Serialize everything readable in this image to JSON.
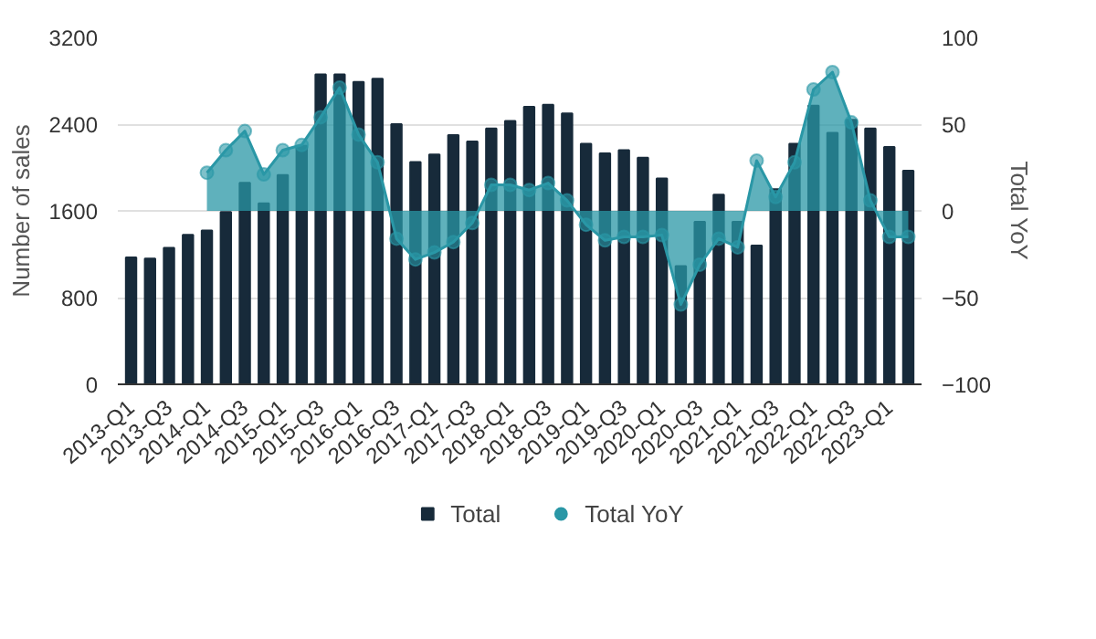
{
  "chart_data": {
    "type": "bar",
    "categories": [
      "2013-Q1",
      null,
      "2013-Q3",
      null,
      "2014-Q1",
      null,
      "2014-Q3",
      null,
      "2015-Q1",
      null,
      "2015-Q3",
      null,
      "2016-Q1",
      null,
      "2016-Q3",
      null,
      "2017-Q1",
      null,
      "2017-Q3",
      null,
      "2018-Q1",
      null,
      "2018-Q3",
      null,
      "2019-Q1",
      null,
      "2019-Q3",
      null,
      "2020-Q1",
      null,
      "2020-Q3",
      null,
      "2021-Q1",
      null,
      "2021-Q3",
      null,
      "2022-Q1",
      null,
      "2022-Q3",
      null,
      "2023-Q1",
      null
    ],
    "series": [
      {
        "name": "Total",
        "type": "bar",
        "color": "#172a3a",
        "values": [
          1170,
          1160,
          1260,
          1380,
          1420,
          1590,
          1860,
          1670,
          1930,
          2200,
          2860,
          2860,
          2790,
          2820,
          2400,
          2050,
          2120,
          2300,
          2240,
          2360,
          2430,
          2560,
          2580,
          2500,
          2220,
          2130,
          2160,
          2090,
          1900,
          1090,
          1500,
          1750,
          1500,
          1280,
          1800,
          2220,
          2570,
          2320,
          2440,
          2360,
          2190,
          1970
        ]
      },
      {
        "name": "Total YoY",
        "type": "area",
        "axis": "y2",
        "color": "#2a97a6",
        "values": [
          null,
          null,
          null,
          null,
          22,
          35,
          46,
          21,
          35,
          38,
          54,
          71,
          44,
          28,
          -16,
          -28,
          -24,
          -18,
          -7,
          15,
          15,
          12,
          16,
          6,
          -8,
          -17,
          -15,
          -15,
          -14,
          -54,
          -31,
          -16,
          -21,
          29,
          8,
          28,
          70,
          80,
          51,
          6,
          -15,
          -15
        ]
      }
    ],
    "ylabel": "Number of sales",
    "y2label": "Total YoY",
    "ylim": [
      0,
      3200
    ],
    "yticks": [
      0,
      800,
      1600,
      2400,
      3200
    ],
    "y2lim": [
      -100,
      100
    ],
    "y2ticks": [
      -100,
      -50,
      0,
      50,
      100
    ],
    "grid": "y",
    "legend": "bottom",
    "marker": "circle"
  }
}
